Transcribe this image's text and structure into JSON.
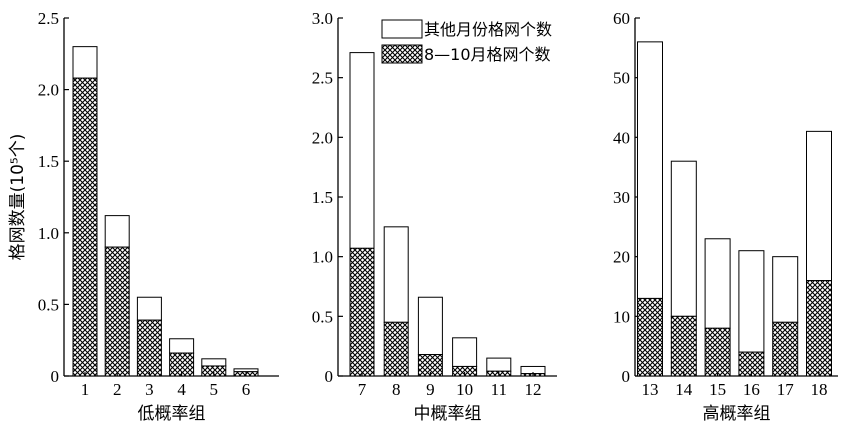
{
  "colors": {
    "ink": "#000000",
    "paper": "#ffffff"
  },
  "chart_data": [
    {
      "type": "bar",
      "stacked": true,
      "categories": [
        "1",
        "2",
        "3",
        "4",
        "5",
        "6"
      ],
      "series": [
        {
          "name": "8—10月格网个数",
          "fill": "crosshatch",
          "values": [
            2.08,
            0.9,
            0.39,
            0.16,
            0.07,
            0.03
          ]
        },
        {
          "name": "其他月份格网个数",
          "fill": "white",
          "values": [
            0.22,
            0.22,
            0.16,
            0.1,
            0.05,
            0.02
          ]
        }
      ],
      "xlabel": "低概率组",
      "ylabel": "格网数量(10⁵个)",
      "ylim": [
        0,
        2.5
      ],
      "yticks": [
        "0",
        "0.5",
        "1.0",
        "1.5",
        "2.0",
        "2.5"
      ],
      "grid": false
    },
    {
      "type": "bar",
      "stacked": true,
      "categories": [
        "7",
        "8",
        "9",
        "10",
        "11",
        "12"
      ],
      "series": [
        {
          "name": "8—10月格网个数",
          "fill": "crosshatch",
          "values": [
            1.07,
            0.45,
            0.18,
            0.08,
            0.04,
            0.02
          ]
        },
        {
          "name": "其他月份格网个数",
          "fill": "white",
          "values": [
            1.64,
            0.8,
            0.48,
            0.24,
            0.11,
            0.06
          ]
        }
      ],
      "xlabel": "中概率组",
      "ylim": [
        0,
        3.0
      ],
      "yticks": [
        "0",
        "0.5",
        "1.0",
        "1.5",
        "2.0",
        "2.5",
        "3.0"
      ],
      "legend": {
        "placement": "top-right",
        "entries": [
          "其他月份格网个数",
          "8—10月格网个数"
        ]
      },
      "grid": false
    },
    {
      "type": "bar",
      "stacked": true,
      "categories": [
        "13",
        "14",
        "15",
        "16",
        "17",
        "18"
      ],
      "series": [
        {
          "name": "8—10月格网个数",
          "fill": "crosshatch",
          "values": [
            13,
            10,
            8,
            4,
            9,
            16
          ]
        },
        {
          "name": "其他月份格网个数",
          "fill": "white",
          "values": [
            43,
            26,
            15,
            17,
            11,
            25
          ]
        }
      ],
      "xlabel": "高概率组",
      "ylim": [
        0,
        60
      ],
      "yticks": [
        "0",
        "10",
        "20",
        "30",
        "40",
        "50",
        "60"
      ],
      "grid": false
    }
  ]
}
